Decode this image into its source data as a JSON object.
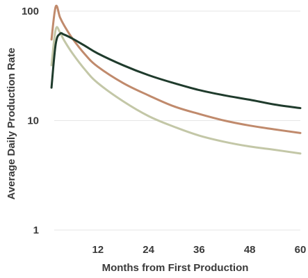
{
  "chart_data": {
    "type": "line",
    "title": "",
    "xlabel": "Months from First Production",
    "ylabel": "Average Daily Production Rate",
    "x_scale": "linear",
    "y_scale": "log",
    "xlim": [
      0,
      60
    ],
    "ylim": [
      1,
      110
    ],
    "x_ticks": [
      12,
      24,
      36,
      48,
      60
    ],
    "x_tick_labels": [
      "12",
      "24",
      "36",
      "48",
      "60"
    ],
    "y_ticks": [
      1,
      10,
      100
    ],
    "y_tick_labels": [
      "1",
      "10",
      "100"
    ],
    "grid": {
      "horizontal": true,
      "vertical": false
    },
    "legend": "none",
    "series": [
      {
        "color": "#1f3b2c",
        "x": [
          1,
          2,
          3,
          4,
          6,
          9,
          12,
          18,
          24,
          30,
          36,
          42,
          48,
          54,
          60
        ],
        "y": [
          20,
          50,
          62,
          61,
          56,
          48,
          41,
          32,
          26,
          22,
          19,
          17,
          15.5,
          14,
          13
        ]
      },
      {
        "color": "#c08a6c",
        "x": [
          1,
          2,
          3,
          4,
          6,
          9,
          12,
          18,
          24,
          30,
          36,
          42,
          48,
          54,
          60
        ],
        "y": [
          55,
          110,
          88,
          74,
          56,
          40,
          31,
          22,
          17,
          13.5,
          11.5,
          10,
          9,
          8.3,
          7.7
        ]
      },
      {
        "color": "#c3c7a7",
        "x": [
          1,
          2,
          3,
          4,
          6,
          9,
          12,
          18,
          24,
          30,
          36,
          42,
          48,
          54,
          60
        ],
        "y": [
          32,
          68,
          64,
          54,
          41,
          29,
          22,
          15,
          11,
          8.8,
          7.3,
          6.4,
          5.8,
          5.4,
          5
        ]
      }
    ]
  }
}
